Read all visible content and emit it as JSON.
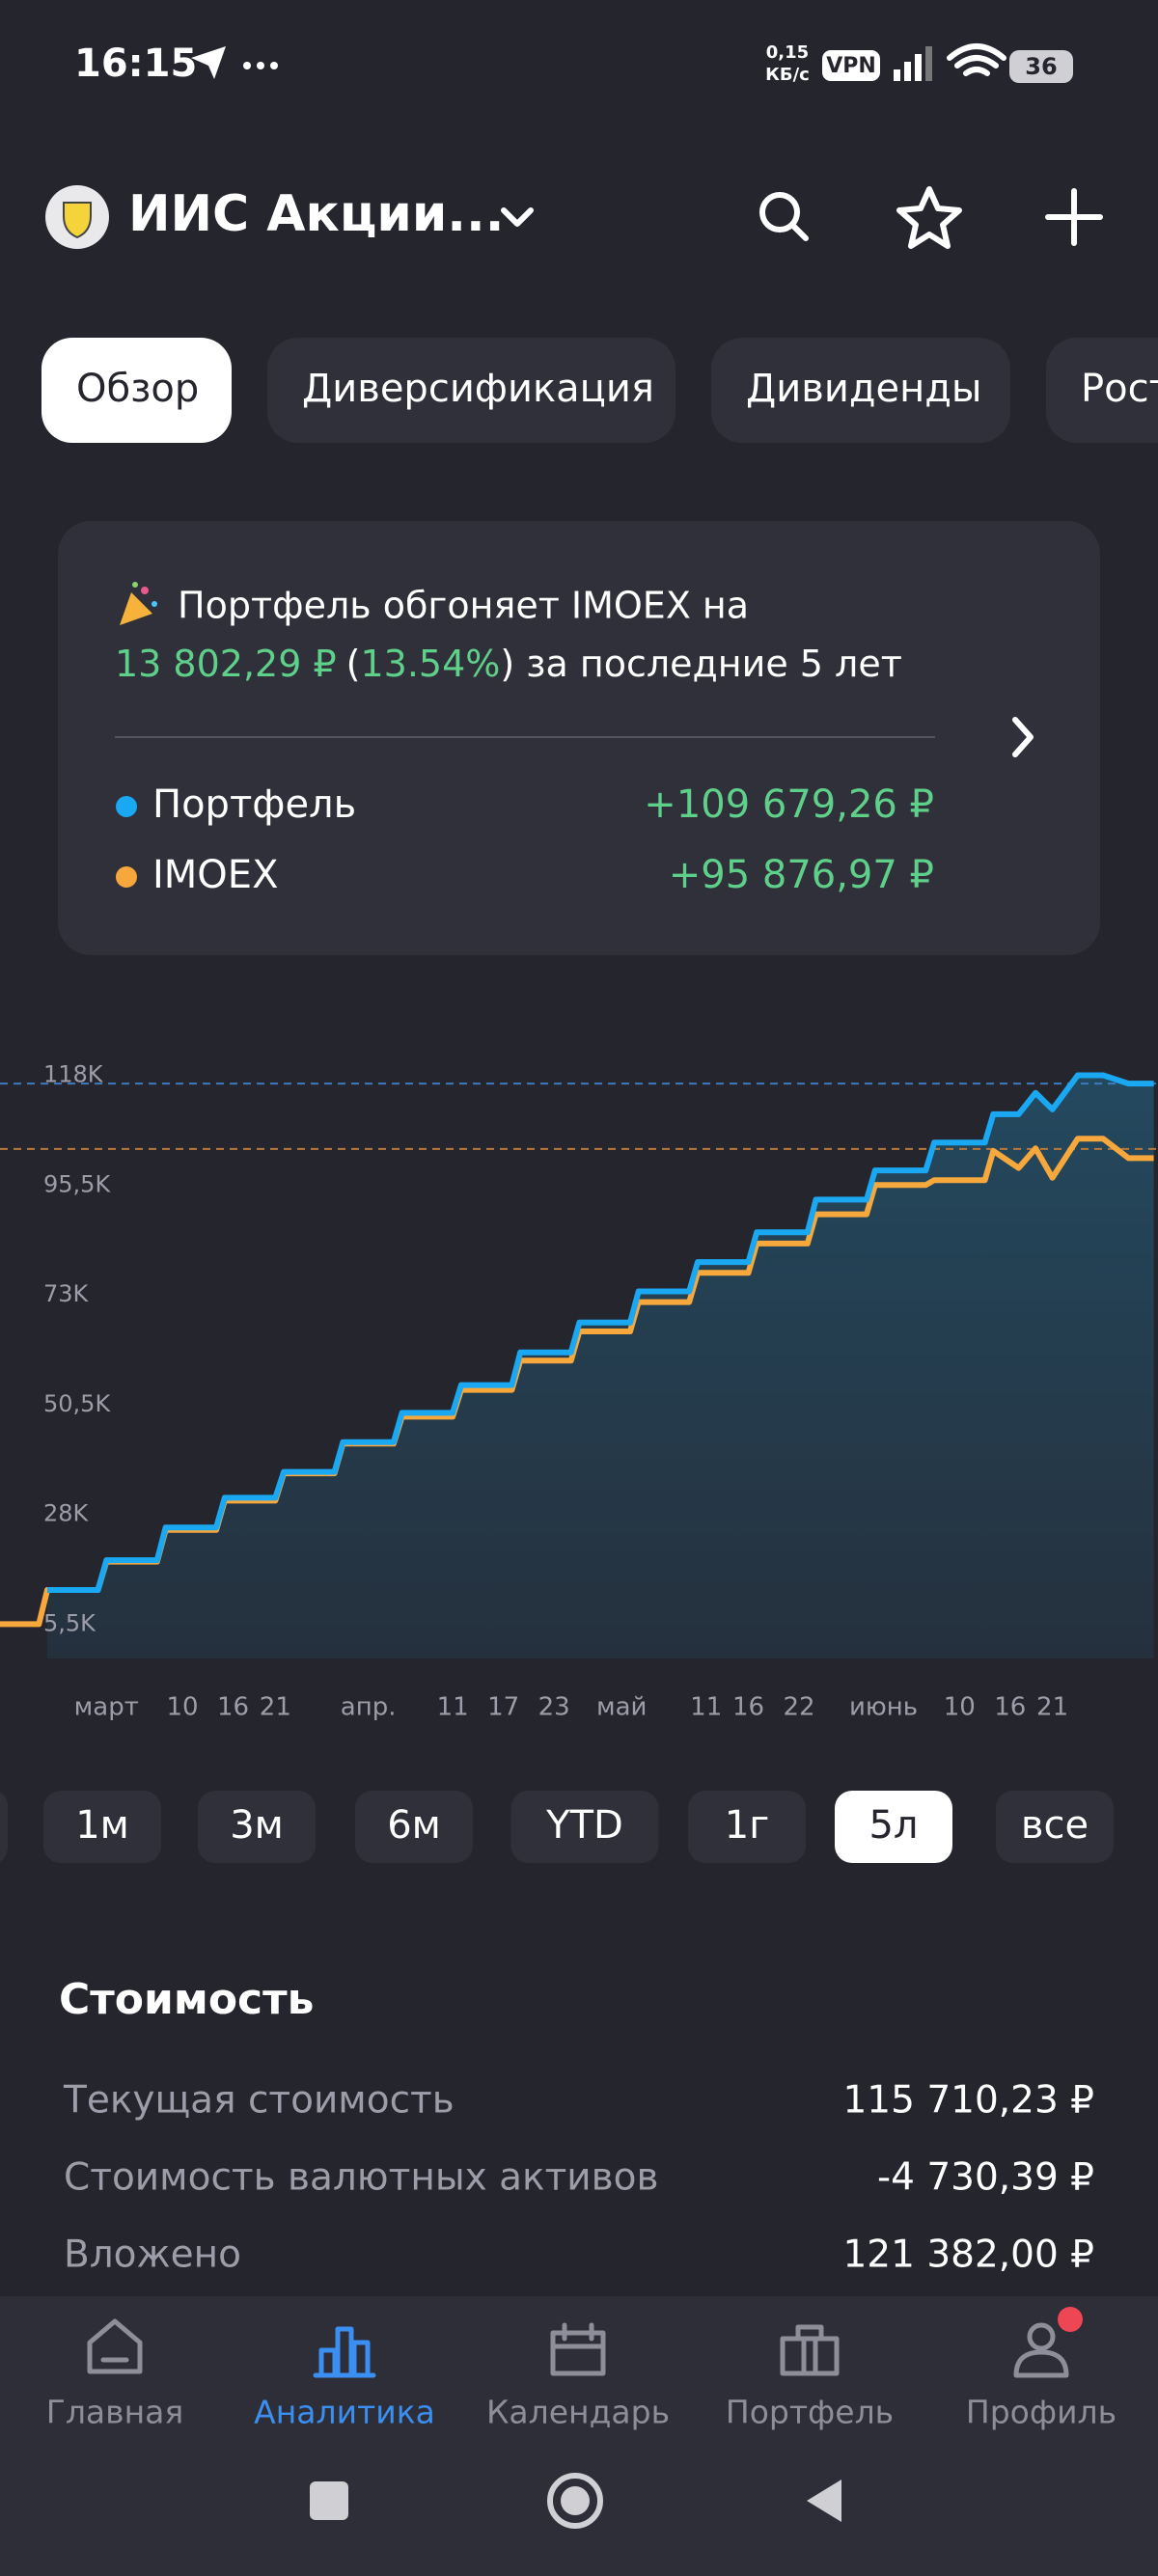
{
  "status": {
    "time": "16:15",
    "speed_value": "0,15",
    "speed_unit": "КБ/с",
    "vpn": "VPN",
    "battery": "36"
  },
  "header": {
    "title": "ИИС Акции..."
  },
  "tabs": {
    "items": [
      "Обзор",
      "Диверсификация",
      "Дивиденды",
      "Рост"
    ],
    "active": 0
  },
  "card": {
    "headline": "Портфель обгоняет IMOEX на",
    "amount": "13 802,29 ₽",
    "open": "(",
    "percent": "13.54%",
    "tail": ") за последние 5 лет",
    "legend": [
      {
        "name": "Портфель",
        "value": "+109 679,26 ₽",
        "color": "#1aa8f2"
      },
      {
        "name": "IMOEX",
        "value": "+95 876,97 ₽",
        "color": "#f7a83c"
      }
    ]
  },
  "chart": {
    "type": "line",
    "xlim": [
      -12.6,
      124.5
    ],
    "ylim": [
      -1550,
      126400
    ],
    "yticks": [
      {
        "value": 118000,
        "label": "118K"
      },
      {
        "value": 95500,
        "label": "95,5K"
      },
      {
        "value": 73000,
        "label": "73K"
      },
      {
        "value": 50500,
        "label": "50,5K"
      },
      {
        "value": 28000,
        "label": "28K"
      },
      {
        "value": 5500,
        "label": "5,5K"
      }
    ],
    "xticks": [
      {
        "value": 0,
        "label": "март"
      },
      {
        "value": 9,
        "label": "10"
      },
      {
        "value": 15,
        "label": "16"
      },
      {
        "value": 20,
        "label": "21"
      },
      {
        "value": 31,
        "label": "апр."
      },
      {
        "value": 41,
        "label": "11"
      },
      {
        "value": 47,
        "label": "17"
      },
      {
        "value": 53,
        "label": "23"
      },
      {
        "value": 61,
        "label": "май"
      },
      {
        "value": 71,
        "label": "11"
      },
      {
        "value": 76,
        "label": "16"
      },
      {
        "value": 82,
        "label": "22"
      },
      {
        "value": 92,
        "label": "июнь"
      },
      {
        "value": 101,
        "label": "10"
      },
      {
        "value": 107,
        "label": "16"
      },
      {
        "value": 112,
        "label": "21"
      }
    ],
    "reference_lines": [
      {
        "value": 116300,
        "color": "#3c7bbd"
      },
      {
        "value": 102900,
        "color": "#b9783c"
      }
    ],
    "series": [
      {
        "color": "#1aa8f2",
        "x": [
          -7,
          -1,
          0,
          6,
          7,
          13,
          14,
          20,
          21,
          27,
          28,
          34,
          35,
          41,
          42,
          48,
          49,
          55,
          56,
          62,
          63,
          69,
          70,
          76,
          77,
          83,
          84,
          90,
          91,
          97,
          98,
          104,
          105,
          108,
          110,
          112,
          115,
          118,
          121,
          124
        ],
        "values": [
          12500,
          12500,
          18600,
          18600,
          25300,
          25300,
          31400,
          31400,
          36700,
          36700,
          42800,
          42800,
          48800,
          48800,
          54500,
          54500,
          61200,
          61200,
          67300,
          67300,
          73700,
          73700,
          79700,
          79700,
          85800,
          85800,
          92500,
          92500,
          98500,
          98500,
          104200,
          104200,
          110000,
          110000,
          114400,
          111000,
          118000,
          118000,
          116300,
          116300
        ]
      },
      {
        "color": "#f7a83c",
        "x": [
          -13,
          -8,
          -7,
          -1,
          0,
          6,
          7,
          13,
          14,
          20,
          21,
          27,
          28,
          34,
          35,
          41,
          42,
          48,
          49,
          55,
          56,
          62,
          63,
          69,
          70,
          76,
          77,
          83,
          84,
          90,
          91,
          97,
          98,
          104,
          105,
          108,
          110,
          112,
          115,
          118,
          121,
          124
        ],
        "values": [
          5500,
          5500,
          12500,
          12500,
          18300,
          18300,
          24800,
          24800,
          30800,
          30800,
          36400,
          36400,
          42500,
          42500,
          48000,
          48000,
          53500,
          53500,
          59500,
          59500,
          65500,
          65500,
          71500,
          71500,
          77500,
          77500,
          83500,
          83500,
          89500,
          89500,
          95500,
          95500,
          96500,
          96500,
          102500,
          99000,
          103000,
          97000,
          105000,
          105000,
          101000,
          101000
        ]
      }
    ]
  },
  "periods": {
    "items": [
      "1м",
      "3м",
      "6м",
      "YTD",
      "1г",
      "5л",
      "все"
    ],
    "active": 5
  },
  "value_section": {
    "title": "Стоимость",
    "rows": [
      {
        "label": "Текущая стоимость",
        "value": "115 710,23 ₽"
      },
      {
        "label": "Стоимость валютных активов",
        "value": "-4 730,39 ₽"
      },
      {
        "label": "Вложено",
        "value": "121 382,00 ₽"
      }
    ]
  },
  "nav": {
    "items": [
      "Главная",
      "Аналитика",
      "Календарь",
      "Портфель",
      "Профиль"
    ],
    "active": 1
  }
}
